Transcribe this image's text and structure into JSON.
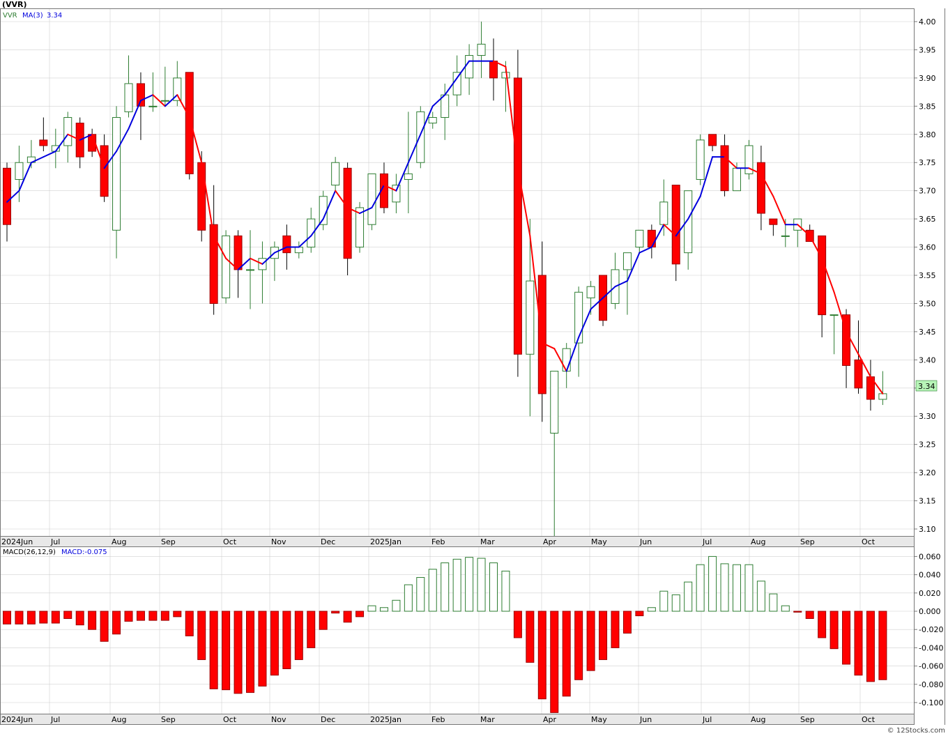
{
  "title": "(VVR)",
  "price_panel": {
    "symbol": "VVR",
    "ma_label": "MA(3)",
    "ma_value": "3.34",
    "last_price_label": "3.34",
    "y_ticks": [
      "3.10",
      "3.15",
      "3.20",
      "3.25",
      "3.30",
      "3.35",
      "3.40",
      "3.45",
      "3.50",
      "3.55",
      "3.60",
      "3.65",
      "3.70",
      "3.75",
      "3.80",
      "3.85",
      "3.90",
      "3.95",
      "4.00"
    ]
  },
  "macd_panel": {
    "label": "MACD(26,12,9)",
    "value_label": "MACD:-0.075",
    "y_ticks": [
      "0.060",
      "0.040",
      "0.020",
      "0.000",
      "-0.020",
      "-0.040",
      "-0.060",
      "-0.080",
      "-0.100"
    ]
  },
  "x_axis_labels": [
    "2024Jun",
    "Jul",
    "Aug",
    "Sep",
    "Oct",
    "Nov",
    "Dec",
    "2025Jan",
    "Feb",
    "Mar",
    "Apr",
    "May",
    "Jun",
    "Jul",
    "Aug",
    "Sep",
    "Oct"
  ],
  "footer": "© 12Stocks.com",
  "colors": {
    "up_candle": "#2e7d32",
    "down_candle": "#ff0000",
    "ma_up": "#0000dd",
    "ma_down": "#ff0000",
    "grid": "#d0d0d0",
    "label_bg": "#b8f5b8"
  },
  "chart_data": [
    {
      "type": "candlestick",
      "title": "(VVR)",
      "ylim": [
        3.08,
        4.03
      ],
      "x_period": "weekly",
      "series": [
        {
          "name": "VVR",
          "ohlc": [
            [
              3.74,
              3.75,
              3.61,
              3.64
            ],
            [
              3.72,
              3.78,
              3.68,
              3.75
            ],
            [
              3.75,
              3.79,
              3.74,
              3.76
            ],
            [
              3.79,
              3.83,
              3.77,
              3.78
            ],
            [
              3.77,
              3.81,
              3.74,
              3.78
            ],
            [
              3.78,
              3.84,
              3.75,
              3.83
            ],
            [
              3.82,
              3.83,
              3.74,
              3.76
            ],
            [
              3.8,
              3.81,
              3.76,
              3.77
            ],
            [
              3.78,
              3.8,
              3.68,
              3.69
            ],
            [
              3.63,
              3.85,
              3.58,
              3.83
            ],
            [
              3.84,
              3.94,
              3.83,
              3.89
            ],
            [
              3.89,
              3.91,
              3.79,
              3.85
            ],
            [
              3.85,
              3.91,
              3.84,
              3.85
            ],
            [
              3.86,
              3.92,
              3.85,
              3.86
            ],
            [
              3.86,
              3.93,
              3.85,
              3.9
            ],
            [
              3.91,
              3.91,
              3.72,
              3.73
            ],
            [
              3.75,
              3.77,
              3.61,
              3.63
            ],
            [
              3.64,
              3.71,
              3.48,
              3.5
            ],
            [
              3.51,
              3.63,
              3.5,
              3.62
            ],
            [
              3.62,
              3.63,
              3.51,
              3.56
            ],
            [
              3.56,
              3.63,
              3.49,
              3.56
            ],
            [
              3.56,
              3.61,
              3.5,
              3.58
            ],
            [
              3.58,
              3.61,
              3.54,
              3.6
            ],
            [
              3.62,
              3.64,
              3.56,
              3.59
            ],
            [
              3.59,
              3.61,
              3.58,
              3.6
            ],
            [
              3.6,
              3.67,
              3.59,
              3.65
            ],
            [
              3.64,
              3.7,
              3.63,
              3.69
            ],
            [
              3.71,
              3.76,
              3.7,
              3.75
            ],
            [
              3.74,
              3.75,
              3.55,
              3.58
            ],
            [
              3.6,
              3.68,
              3.59,
              3.67
            ],
            [
              3.64,
              3.73,
              3.63,
              3.73
            ],
            [
              3.73,
              3.75,
              3.66,
              3.67
            ],
            [
              3.68,
              3.73,
              3.66,
              3.71
            ],
            [
              3.72,
              3.84,
              3.66,
              3.73
            ],
            [
              3.75,
              3.85,
              3.74,
              3.84
            ],
            [
              3.82,
              3.84,
              3.81,
              3.83
            ],
            [
              3.83,
              3.89,
              3.79,
              3.87
            ],
            [
              3.87,
              3.94,
              3.85,
              3.91
            ],
            [
              3.9,
              3.96,
              3.87,
              3.94
            ],
            [
              3.94,
              4.0,
              3.9,
              3.96
            ],
            [
              3.93,
              3.97,
              3.86,
              3.9
            ],
            [
              3.9,
              3.93,
              3.84,
              3.91
            ],
            [
              3.9,
              3.95,
              3.37,
              3.41
            ],
            [
              3.41,
              3.65,
              3.3,
              3.54
            ],
            [
              3.55,
              3.61,
              3.29,
              3.34
            ],
            [
              3.27,
              3.38,
              3.08,
              3.38
            ],
            [
              3.38,
              3.43,
              3.35,
              3.42
            ],
            [
              3.43,
              3.53,
              3.37,
              3.52
            ],
            [
              3.51,
              3.54,
              3.48,
              3.53
            ],
            [
              3.55,
              3.55,
              3.46,
              3.47
            ],
            [
              3.5,
              3.59,
              3.49,
              3.56
            ],
            [
              3.56,
              3.59,
              3.48,
              3.59
            ],
            [
              3.6,
              3.63,
              3.59,
              3.63
            ],
            [
              3.63,
              3.64,
              3.58,
              3.6
            ],
            [
              3.64,
              3.72,
              3.62,
              3.68
            ],
            [
              3.71,
              3.71,
              3.54,
              3.57
            ],
            [
              3.59,
              3.7,
              3.56,
              3.7
            ],
            [
              3.72,
              3.8,
              3.71,
              3.79
            ],
            [
              3.8,
              3.8,
              3.77,
              3.78
            ],
            [
              3.78,
              3.8,
              3.69,
              3.7
            ],
            [
              3.7,
              3.75,
              3.7,
              3.74
            ],
            [
              3.73,
              3.79,
              3.72,
              3.78
            ],
            [
              3.75,
              3.78,
              3.63,
              3.66
            ],
            [
              3.65,
              3.65,
              3.62,
              3.64
            ],
            [
              3.62,
              3.65,
              3.6,
              3.62
            ],
            [
              3.63,
              3.65,
              3.6,
              3.65
            ],
            [
              3.63,
              3.64,
              3.61,
              3.61
            ],
            [
              3.62,
              3.62,
              3.44,
              3.48
            ],
            [
              3.48,
              3.48,
              3.41,
              3.48
            ],
            [
              3.48,
              3.49,
              3.35,
              3.39
            ],
            [
              3.4,
              3.47,
              3.34,
              3.35
            ],
            [
              3.37,
              3.4,
              3.31,
              3.33
            ],
            [
              3.33,
              3.38,
              3.32,
              3.34
            ]
          ]
        },
        {
          "name": "MA(3)",
          "values": [
            3.68,
            3.7,
            3.75,
            3.76,
            3.77,
            3.8,
            3.79,
            3.8,
            3.74,
            3.77,
            3.81,
            3.86,
            3.87,
            3.85,
            3.87,
            3.83,
            3.75,
            3.62,
            3.58,
            3.56,
            3.58,
            3.57,
            3.59,
            3.6,
            3.6,
            3.62,
            3.65,
            3.7,
            3.67,
            3.66,
            3.67,
            3.71,
            3.7,
            3.75,
            3.8,
            3.85,
            3.87,
            3.9,
            3.93,
            3.93,
            3.93,
            3.92,
            3.74,
            3.62,
            3.43,
            3.42,
            3.38,
            3.44,
            3.49,
            3.51,
            3.53,
            3.54,
            3.59,
            3.6,
            3.64,
            3.62,
            3.65,
            3.69,
            3.76,
            3.76,
            3.74,
            3.74,
            3.73,
            3.69,
            3.64,
            3.64,
            3.62,
            3.58,
            3.52,
            3.45,
            3.41,
            3.37,
            3.34
          ]
        }
      ]
    },
    {
      "type": "bar",
      "title": "MACD(26,12,9)",
      "ylim": [
        -0.11,
        0.065
      ],
      "series": [
        {
          "name": "MACD",
          "values": [
            -0.014,
            -0.014,
            -0.014,
            -0.013,
            -0.013,
            -0.008,
            -0.015,
            -0.02,
            -0.033,
            -0.025,
            -0.011,
            -0.01,
            -0.01,
            -0.01,
            -0.006,
            -0.027,
            -0.053,
            -0.085,
            -0.086,
            -0.09,
            -0.089,
            -0.082,
            -0.07,
            -0.063,
            -0.053,
            -0.04,
            -0.02,
            -0.002,
            -0.012,
            -0.006,
            0.006,
            0.004,
            0.012,
            0.029,
            0.037,
            0.046,
            0.053,
            0.057,
            0.059,
            0.058,
            0.053,
            0.044,
            -0.029,
            -0.056,
            -0.096,
            -0.111,
            -0.093,
            -0.075,
            -0.065,
            -0.053,
            -0.04,
            -0.024,
            -0.005,
            0.004,
            0.022,
            0.018,
            0.032,
            0.051,
            0.06,
            0.052,
            0.051,
            0.051,
            0.033,
            0.019,
            0.006,
            -0.001,
            -0.008,
            -0.029,
            -0.041,
            -0.058,
            -0.07,
            -0.077,
            -0.075
          ]
        }
      ]
    }
  ]
}
